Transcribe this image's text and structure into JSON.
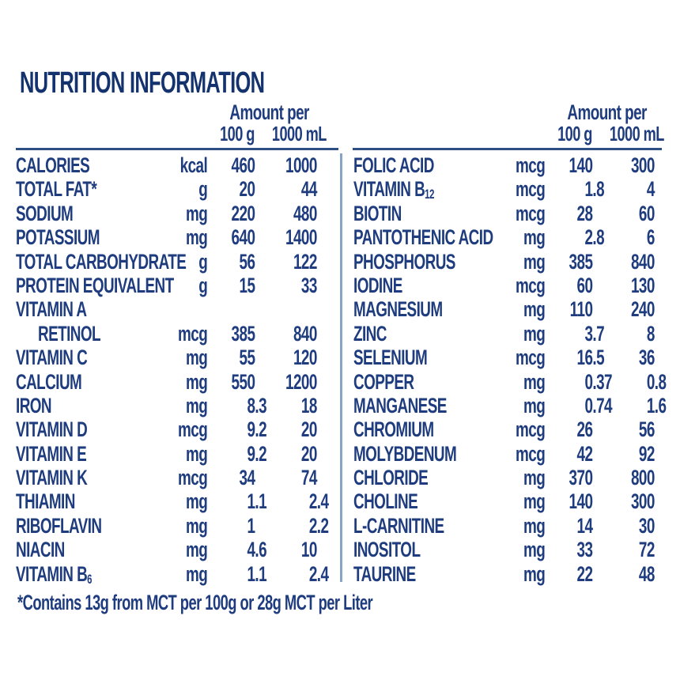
{
  "title": "NUTRITION INFORMATION",
  "header": {
    "amount_per": "Amount per",
    "col_100g": "100 g",
    "col_1000ml": "1000 mL"
  },
  "footnote": "*Contains 13g from MCT per 100g or 28g MCT per Liter",
  "colors": {
    "text": "#1e3c7e",
    "title": "#14326e",
    "rule": "#2e4e86",
    "divider": "#87a3c6",
    "background": "#ffffff"
  },
  "left_table": {
    "rows": [
      {
        "label": "CALORIES",
        "unit": "kcal",
        "per_100g": "460",
        "per_1000ml": "1000"
      },
      {
        "label": "TOTAL FAT*",
        "unit": "g",
        "per_100g": "20",
        "per_1000ml": "44"
      },
      {
        "label": "SODIUM",
        "unit": "mg",
        "per_100g": "220",
        "per_1000ml": "480"
      },
      {
        "label": "POTASSIUM",
        "unit": "mg",
        "per_100g": "640",
        "per_1000ml": "1400"
      },
      {
        "label": "TOTAL CARBOHYDRATE",
        "unit": "g",
        "per_100g": "56",
        "per_1000ml": "122"
      },
      {
        "label": "PROTEIN EQUIVALENT",
        "unit": "g",
        "per_100g": "15",
        "per_1000ml": "33"
      },
      {
        "label": "VITAMIN A",
        "unit": "",
        "per_100g": "",
        "per_1000ml": ""
      },
      {
        "label": "RETINOL",
        "indent": true,
        "unit": "mcg",
        "per_100g": "385",
        "per_1000ml": "840"
      },
      {
        "label": "VITAMIN C",
        "unit": "mg",
        "per_100g": "55",
        "per_1000ml": "120"
      },
      {
        "label": "CALCIUM",
        "unit": "mg",
        "per_100g": "550",
        "per_1000ml": "1200"
      },
      {
        "label": "IRON",
        "unit": "mg",
        "per_100g": "8.3",
        "per_1000ml": "18"
      },
      {
        "label": "VITAMIN D",
        "unit": "mcg",
        "per_100g": "9.2",
        "per_1000ml": "20"
      },
      {
        "label": "VITAMIN E",
        "unit": "mg",
        "per_100g": "9.2",
        "per_1000ml": "20"
      },
      {
        "label": "VITAMIN K",
        "unit": "mcg",
        "per_100g": "34",
        "per_1000ml": "74"
      },
      {
        "label": "THIAMIN",
        "unit": "mg",
        "per_100g": "1.1",
        "per_1000ml": "2.4"
      },
      {
        "label": "RIBOFLAVIN",
        "unit": "mg",
        "per_100g": "1",
        "per_1000ml": "2.2"
      },
      {
        "label": "NIACIN",
        "unit": "mg",
        "per_100g": "4.6",
        "per_1000ml": "10"
      },
      {
        "label": "VITAMIN B",
        "sub": "6",
        "unit": "mg",
        "per_100g": "1.1",
        "per_1000ml": "2.4"
      }
    ]
  },
  "right_table": {
    "rows": [
      {
        "label": "FOLIC ACID",
        "unit": "mcg",
        "per_100g": "140",
        "per_1000ml": "300"
      },
      {
        "label": "VITAMIN B",
        "sub": "12",
        "unit": "mcg",
        "per_100g": "1.8",
        "per_1000ml": "4"
      },
      {
        "label": "BIOTIN",
        "unit": "mcg",
        "per_100g": "28",
        "per_1000ml": "60"
      },
      {
        "label": "PANTOTHENIC ACID",
        "unit": "mg",
        "per_100g": "2.8",
        "per_1000ml": "6"
      },
      {
        "label": "PHOSPHORUS",
        "unit": "mg",
        "per_100g": "385",
        "per_1000ml": "840"
      },
      {
        "label": "IODINE",
        "unit": "mcg",
        "per_100g": "60",
        "per_1000ml": "130"
      },
      {
        "label": "MAGNESIUM",
        "unit": "mg",
        "per_100g": "110",
        "per_1000ml": "240"
      },
      {
        "label": "ZINC",
        "unit": "mg",
        "per_100g": "3.7",
        "per_1000ml": "8"
      },
      {
        "label": "SELENIUM",
        "unit": "mcg",
        "per_100g": "16.5",
        "per_1000ml": "36"
      },
      {
        "label": "COPPER",
        "unit": "mg",
        "per_100g": "0.37",
        "per_1000ml": "0.8"
      },
      {
        "label": "MANGANESE",
        "unit": "mg",
        "per_100g": "0.74",
        "per_1000ml": "1.6"
      },
      {
        "label": "CHROMIUM",
        "unit": "mcg",
        "per_100g": "26",
        "per_1000ml": "56"
      },
      {
        "label": "MOLYBDENUM",
        "unit": "mcg",
        "per_100g": "42",
        "per_1000ml": "92"
      },
      {
        "label": "CHLORIDE",
        "unit": "mg",
        "per_100g": "370",
        "per_1000ml": "800"
      },
      {
        "label": "CHOLINE",
        "unit": "mg",
        "per_100g": "140",
        "per_1000ml": "300"
      },
      {
        "label": "L-CARNITINE",
        "unit": "mg",
        "per_100g": "14",
        "per_1000ml": "30"
      },
      {
        "label": "INOSITOL",
        "unit": "mg",
        "per_100g": "33",
        "per_1000ml": "72"
      },
      {
        "label": "TAURINE",
        "unit": "mg",
        "per_100g": "22",
        "per_1000ml": "48"
      }
    ]
  }
}
